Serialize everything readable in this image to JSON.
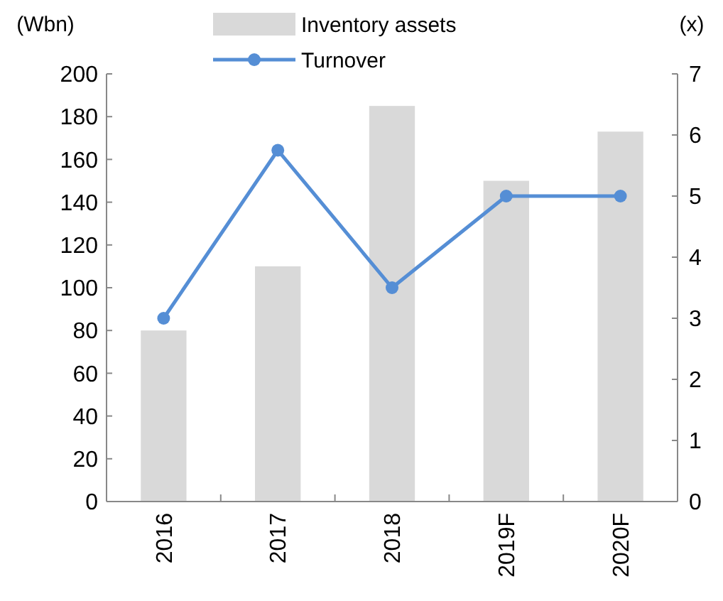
{
  "chart_data": {
    "type": "bar",
    "categories": [
      "2016",
      "2017",
      "2018",
      "2019F",
      "2020F"
    ],
    "series": [
      {
        "name": "Inventory assets",
        "color": "#d9d9d9",
        "values": [
          80,
          110,
          185,
          150,
          173
        ]
      },
      {
        "name": "Turnover",
        "type": "line",
        "axis": "y2",
        "color": "#558ed5",
        "values": [
          3.0,
          5.75,
          3.5,
          5.0,
          5.0
        ]
      }
    ],
    "ylabel": "(Wbn)",
    "y2label": "(x)",
    "ylim": [
      0,
      200
    ],
    "yticks": [
      0,
      20,
      40,
      60,
      80,
      100,
      120,
      140,
      160,
      180,
      200
    ],
    "y2lim": [
      0,
      7
    ],
    "y2ticks": [
      0,
      1,
      2,
      3,
      4,
      5,
      6,
      7
    ],
    "legend": "top",
    "marker": "circle",
    "grid": false
  }
}
